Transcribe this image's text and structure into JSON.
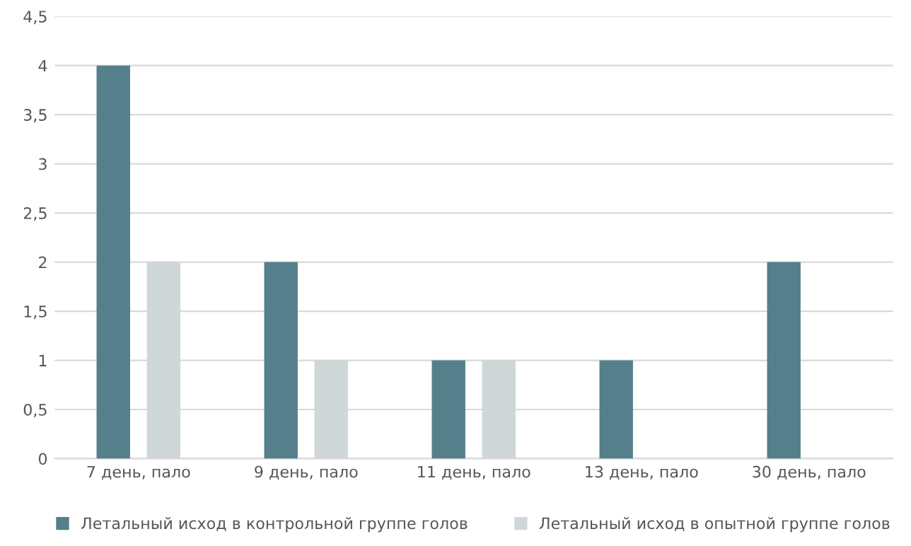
{
  "chart_data": {
    "type": "bar",
    "categories": [
      "7 день, пало",
      "9 день, пало",
      "11 день, пало",
      "13 день, пало",
      "30 день, пало"
    ],
    "series": [
      {
        "name": "Летальный исход в контрольной группе голов",
        "color": "#557f8a",
        "values": [
          4,
          2,
          1,
          1,
          2
        ]
      },
      {
        "name": "Летальный исход в опытной группе голов",
        "color": "#d0d7d9",
        "values": [
          2,
          1,
          1,
          0,
          0
        ]
      }
    ],
    "ylim": [
      0,
      4.5
    ],
    "yticks": [
      0,
      {
        "value": 0.5,
        "label": "0,5"
      },
      1,
      {
        "value": 1.5,
        "label": "1,5"
      },
      2,
      {
        "value": 2.5,
        "label": "2,5"
      },
      3,
      {
        "value": 3.5,
        "label": "3,5"
      },
      4,
      {
        "value": 4.5,
        "label": "4,5"
      }
    ],
    "grid": "y",
    "legend": "bottom"
  }
}
